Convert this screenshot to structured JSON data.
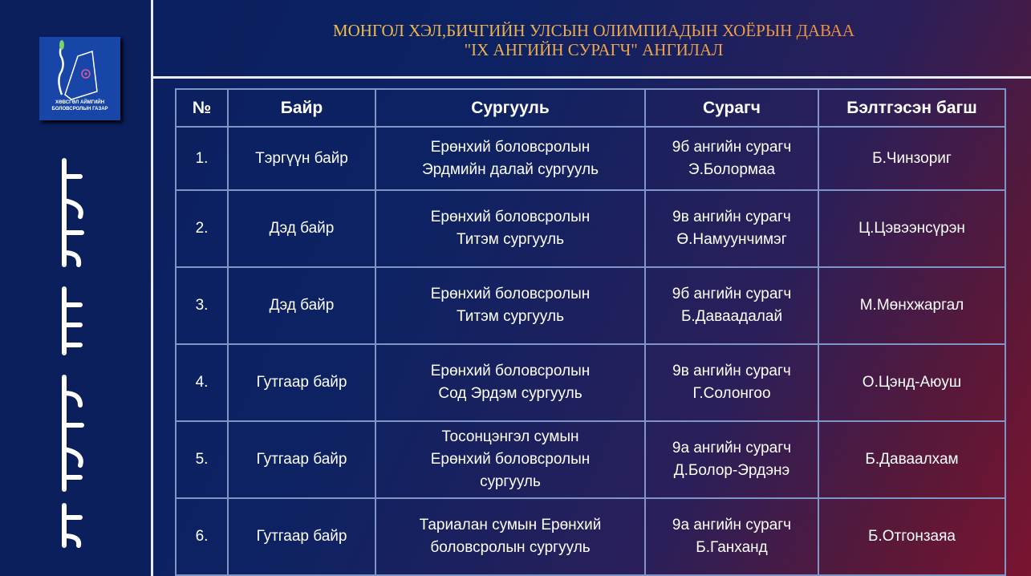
{
  "logo": {
    "line1": "ХӨВСГӨЛ АЙМГИЙН",
    "line2": "БОЛОВСРОЛЫН ГАЗАР"
  },
  "title": {
    "line1": "МОНГОЛ ХЭЛ,БИЧГИЙН УЛСЫН ОЛИМПИАДЫН ХОЁРЫН ДАВАА",
    "line2": "\"IX АНГИЙН СУРАГЧ\" АНГИЛАЛ"
  },
  "table": {
    "headers": [
      "№",
      "Байр",
      "Сургууль",
      "Сурагч",
      "Бэлтгэсэн багш"
    ],
    "rows": [
      {
        "no": "1.",
        "place": "Тэргүүн байр",
        "school": [
          "Ерөнхий боловсролын",
          "Эрдмийн далай сургууль"
        ],
        "student": [
          "9б ангийн сурагч",
          "Э.Болормаа"
        ],
        "teacher": "Б.Чинзориг"
      },
      {
        "no": "2.",
        "place": "Дэд байр",
        "school": [
          "Ерөнхий боловсролын",
          "Титэм сургууль"
        ],
        "student": [
          "9в ангийн сурагч",
          "Ө.Намуунчимэг"
        ],
        "teacher": "Ц.Цэвээнсүрэн"
      },
      {
        "no": "3.",
        "place": "Дэд байр",
        "school": [
          "Ерөнхий боловсролын",
          "Титэм сургууль"
        ],
        "student": [
          "9б ангийн сурагч",
          "Б.Даваадалай"
        ],
        "teacher": "М.Мөнхжаргал"
      },
      {
        "no": "4.",
        "place": "Гутгаар байр",
        "school": [
          "Ерөнхий боловсролын",
          "Сод Эрдэм сургууль"
        ],
        "student": [
          "9в ангийн сурагч",
          "Г.Солонгоо"
        ],
        "teacher": "О.Цэнд-Аюуш"
      },
      {
        "no": "5.",
        "place": "Гутгаар байр",
        "school": [
          "Тосонцэнгэл сумын",
          "Ерөнхий боловсролын",
          "сургууль"
        ],
        "student": [
          "9а ангийн сурагч",
          "Д.Болор-Эрдэнэ"
        ],
        "teacher": "Б.Даваалхам"
      },
      {
        "no": "6.",
        "place": "Гутгаар байр",
        "school": [
          "Тариалан сумын Ерөнхий",
          "боловсролын сургууль"
        ],
        "student": [
          "9а ангийн сурагч",
          "Б.Ганханд"
        ],
        "teacher": "Б.Отгонзаяа"
      }
    ]
  }
}
